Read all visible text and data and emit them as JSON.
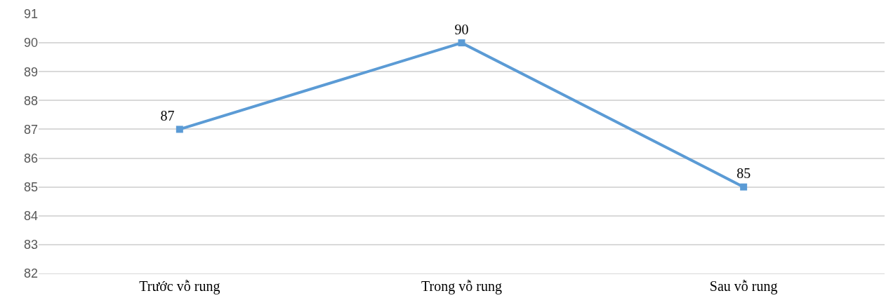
{
  "chart_data": {
    "type": "line",
    "categories": [
      "Trước vỗ rung",
      "Trong vỗ rung",
      "Sau vỗ rung"
    ],
    "series": [
      {
        "color": "#5b9bd5",
        "values": [
          87,
          90,
          85
        ]
      }
    ],
    "ylim": [
      82,
      91
    ],
    "yticks": [
      82,
      83,
      84,
      85,
      86,
      87,
      88,
      89,
      90,
      91
    ],
    "grid": "y",
    "marker": "square",
    "line_style": "solid",
    "data_labels": true,
    "legend": false
  }
}
